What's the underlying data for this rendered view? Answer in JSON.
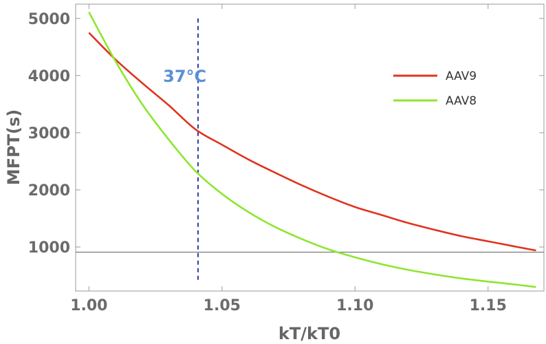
{
  "chart_data": {
    "type": "line",
    "title": "",
    "xlabel": "kT/kT0",
    "ylabel": "MFPT(s)",
    "xlim": [
      0.995,
      1.171
    ],
    "ylim": [
      230,
      5250
    ],
    "xticks": [
      1.0,
      1.05,
      1.1,
      1.15
    ],
    "xtick_labels": [
      "1.00",
      "1.05",
      "1.10",
      "1.15"
    ],
    "yticks": [
      1000,
      2000,
      3000,
      4000,
      5000
    ],
    "ytick_labels": [
      "1000",
      "2000",
      "3000",
      "4000",
      "5000"
    ],
    "grid": false,
    "legend_position": "top-right",
    "series": [
      {
        "name": "AAV9",
        "color": "#e0331f",
        "x": [
          1.0,
          1.01,
          1.02,
          1.03,
          1.04,
          1.05,
          1.06,
          1.07,
          1.08,
          1.09,
          1.1,
          1.11,
          1.12,
          1.13,
          1.14,
          1.15,
          1.16,
          1.168
        ],
        "y": [
          4750,
          4280,
          3870,
          3480,
          3060,
          2790,
          2530,
          2300,
          2080,
          1880,
          1700,
          1560,
          1420,
          1300,
          1190,
          1100,
          1010,
          940
        ]
      },
      {
        "name": "AAV8",
        "color": "#8ee62e",
        "x": [
          1.0,
          1.01,
          1.02,
          1.03,
          1.04,
          1.05,
          1.06,
          1.07,
          1.08,
          1.09,
          1.1,
          1.11,
          1.12,
          1.13,
          1.14,
          1.15,
          1.16,
          1.168
        ],
        "y": [
          5110,
          4250,
          3500,
          2880,
          2330,
          1930,
          1610,
          1350,
          1140,
          960,
          820,
          700,
          600,
          520,
          450,
          395,
          345,
          300
        ]
      }
    ],
    "reference_lines": [
      {
        "orientation": "horizontal",
        "y": 910,
        "color": "#7a7a7a",
        "style": "solid"
      },
      {
        "orientation": "vertical",
        "x": 1.041,
        "color": "#2f3fa8",
        "style": "dashed",
        "y_range": [
          400,
          5000
        ]
      }
    ],
    "annotations": [
      {
        "text": "37°C",
        "x": 1.036,
        "y": 4000,
        "color": "#5b8fd6"
      }
    ]
  }
}
